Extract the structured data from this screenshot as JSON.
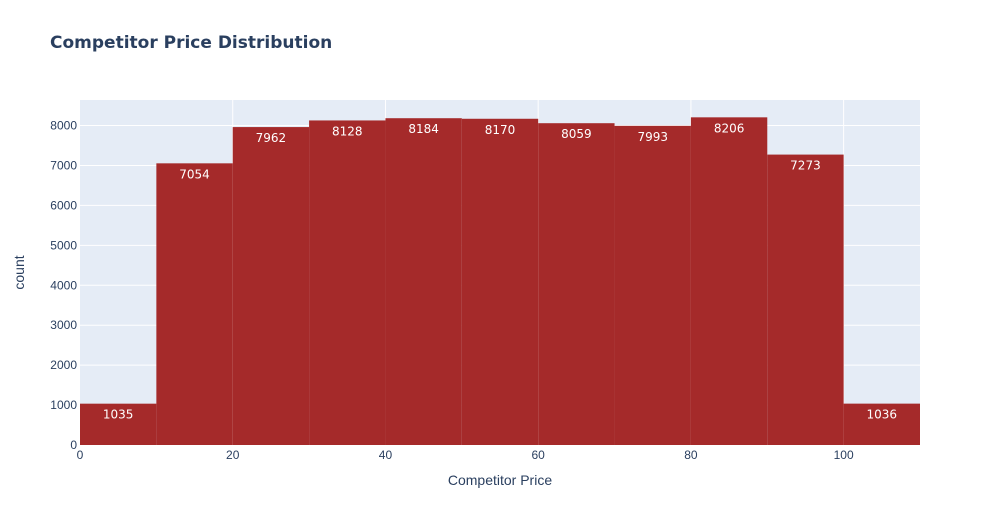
{
  "chart_data": {
    "type": "bar",
    "title": "Competitor Price Distribution",
    "xlabel": "Competitor Price",
    "ylabel": "count",
    "bins": [
      [
        0,
        10
      ],
      [
        10,
        20
      ],
      [
        20,
        30
      ],
      [
        30,
        40
      ],
      [
        40,
        50
      ],
      [
        50,
        60
      ],
      [
        60,
        70
      ],
      [
        70,
        80
      ],
      [
        80,
        90
      ],
      [
        90,
        100
      ],
      [
        100,
        110
      ]
    ],
    "values": [
      1035,
      7054,
      7962,
      8128,
      8184,
      8170,
      8059,
      7993,
      8206,
      7273,
      1036
    ],
    "xlim": [
      0,
      110
    ],
    "ylim": [
      0,
      8640
    ],
    "xticks": [
      0,
      20,
      40,
      60,
      80,
      100
    ],
    "yticks": [
      0,
      1000,
      2000,
      3000,
      4000,
      5000,
      6000,
      7000,
      8000
    ],
    "grid": true,
    "bar_color": "#a52a2a",
    "plot_bg": "#e5ecf6"
  }
}
